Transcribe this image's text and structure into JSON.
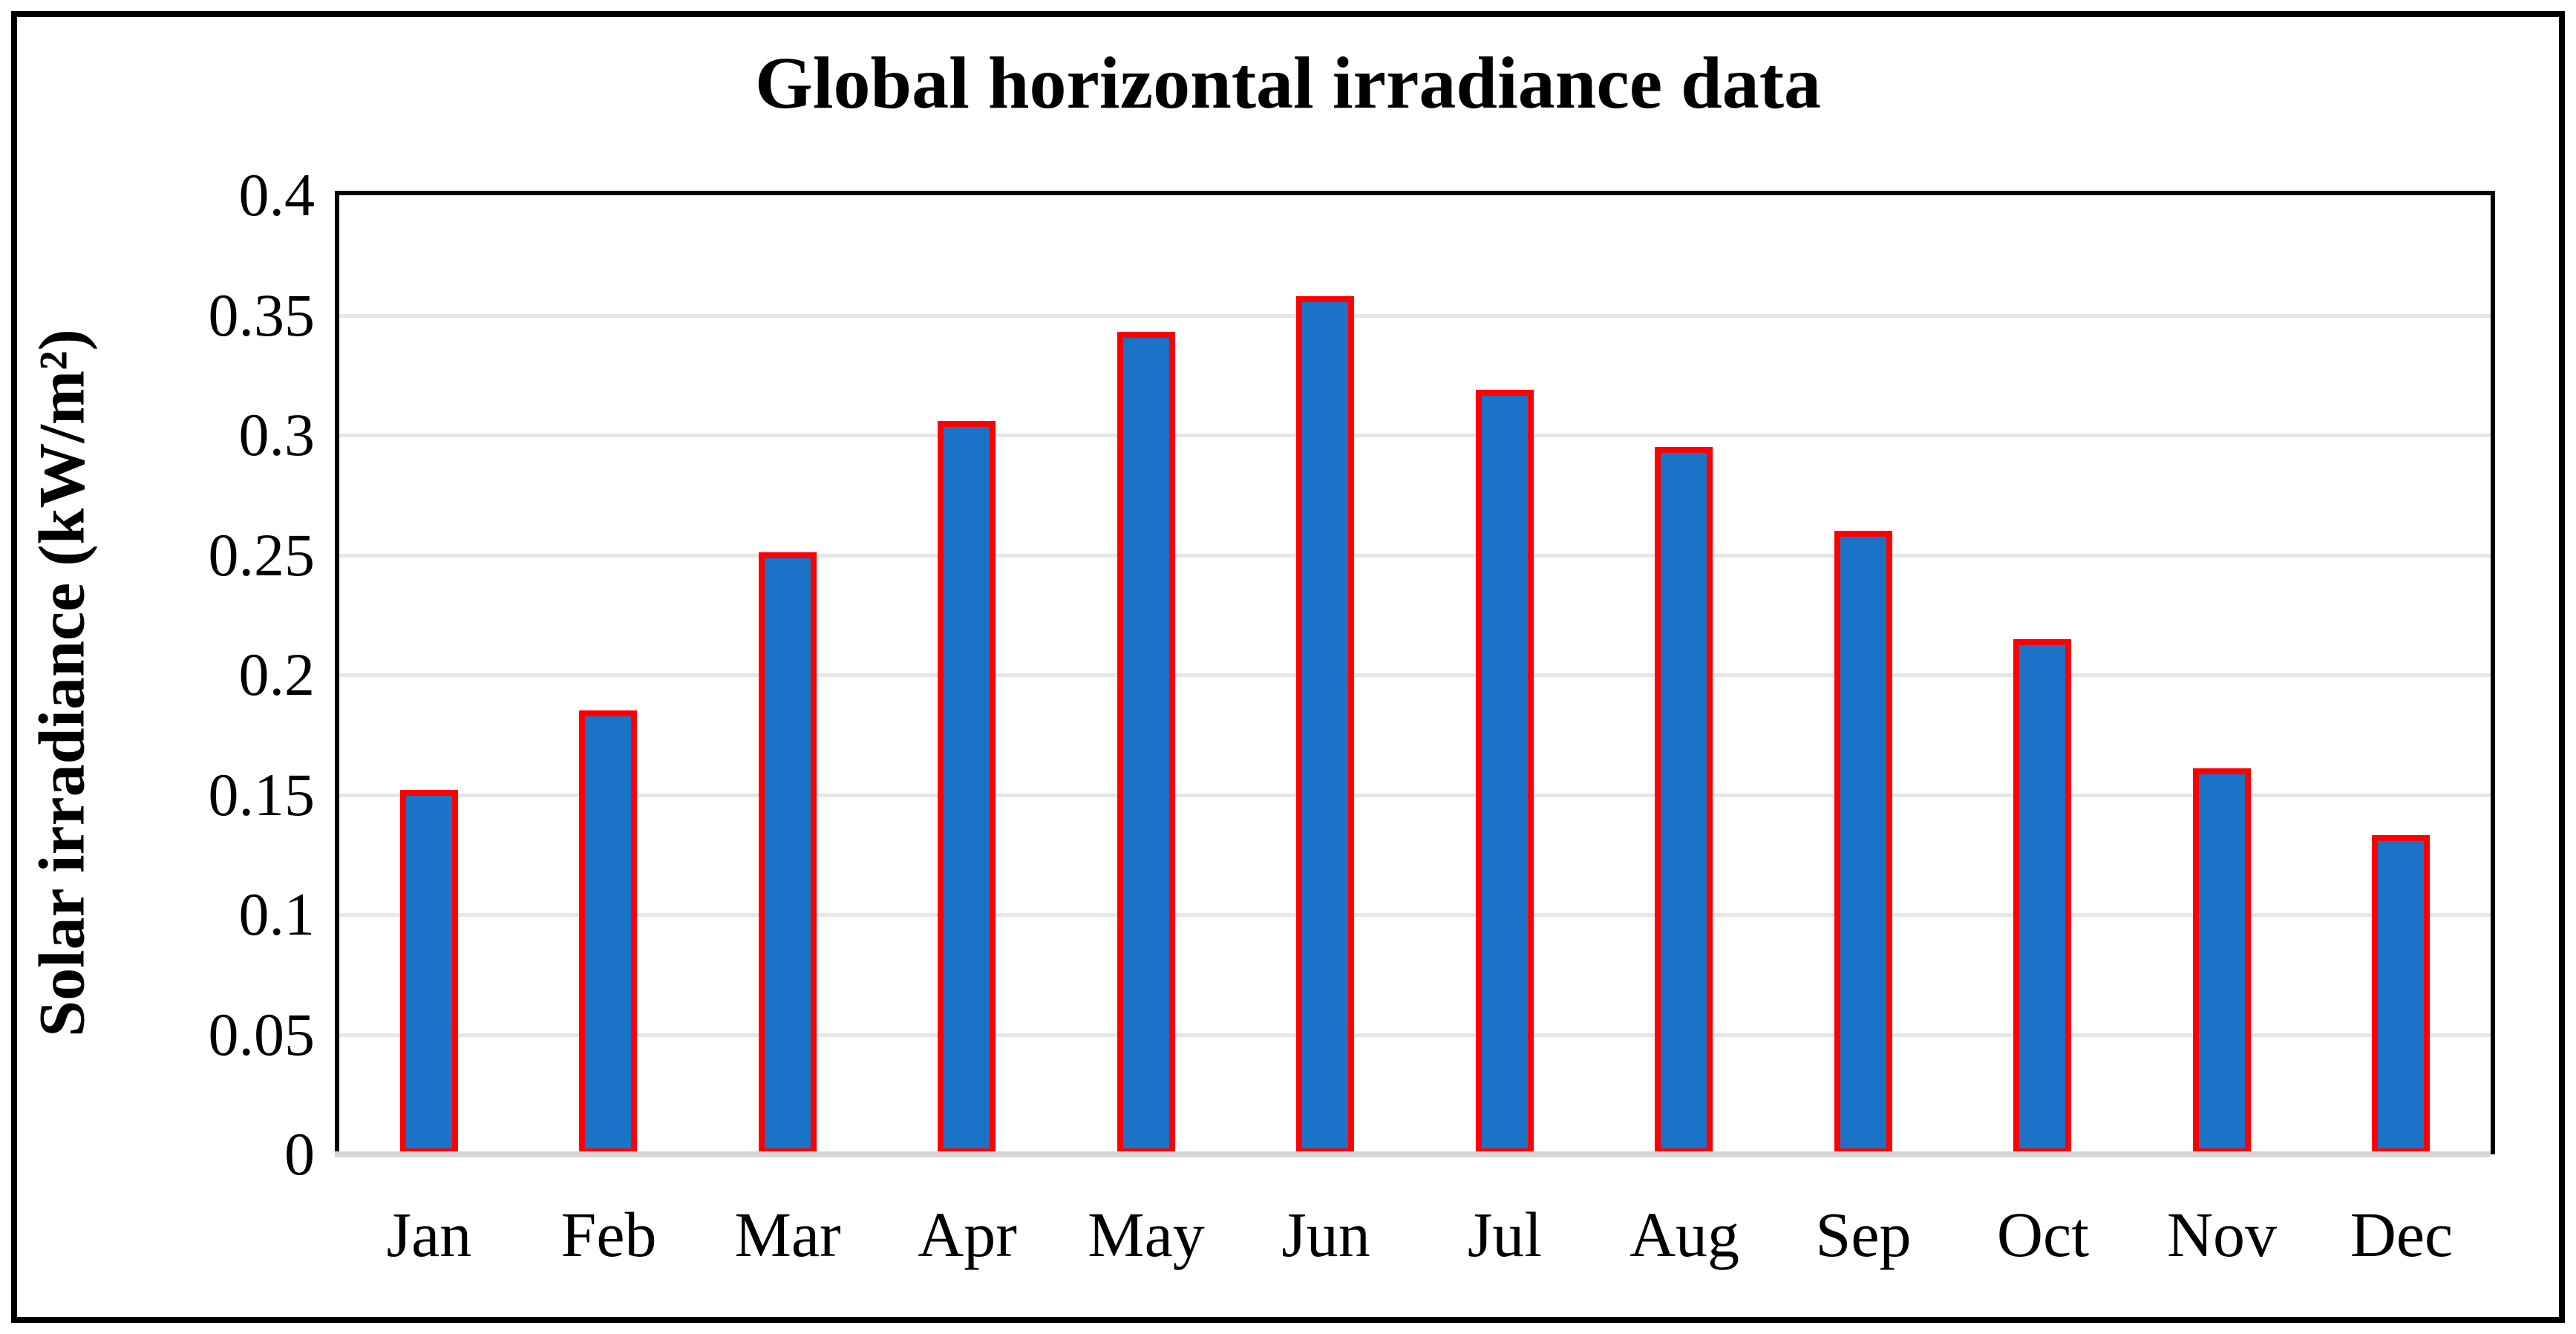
{
  "title": "Global horizontal irradiance data",
  "y_axis": {
    "label": "Solar irradiance (kW/m²)",
    "ticks": [
      "0.4",
      "0.35",
      "0.3",
      "0.25",
      "0.2",
      "0.15",
      "0.1",
      "0.05",
      "0"
    ]
  },
  "chart_data": {
    "type": "bar",
    "title": "Global horizontal irradiance data",
    "xlabel": "",
    "ylabel": "Solar irradiance (kW/m²)",
    "ylim": [
      0,
      0.4
    ],
    "ytick_interval": 0.05,
    "grid": "horizontal",
    "legend": "none",
    "categories": [
      "Jan",
      "Feb",
      "Mar",
      "Apr",
      "May",
      "Jun",
      "Jul",
      "Aug",
      "Sep",
      "Oct",
      "Nov",
      "Dec"
    ],
    "values": [
      0.152,
      0.185,
      0.251,
      0.306,
      0.343,
      0.358,
      0.319,
      0.295,
      0.26,
      0.215,
      0.161,
      0.133
    ]
  },
  "colors": {
    "bar_fill": "#1B73C8",
    "bar_outline": "#FF0000",
    "gridline": "#E6E6E6",
    "zero_axis": "#D6D6D6",
    "plot_border": "#000000",
    "outer_border": "#000000",
    "background": "#FFFFFF"
  }
}
